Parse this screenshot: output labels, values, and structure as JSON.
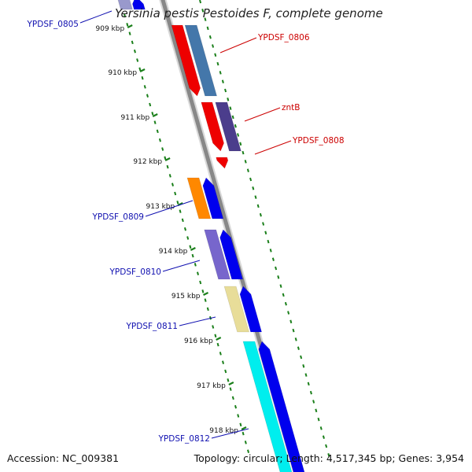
{
  "header": {
    "title": "Yersinia pestis Pestoides F, complete genome"
  },
  "footer": {
    "accession": "Accession: NC_009381",
    "summary": "Topology: circular; Length: 4,517,345 bp; Genes: 3,954"
  },
  "colors": {
    "backbone": "#888888",
    "tick_track": "#1a7f1a",
    "label_red": "#cc0000",
    "label_blue": "#1010b0"
  },
  "ruler": {
    "unit": "kbp",
    "tick_labels": [
      {
        "pos_kbp": 909,
        "text": "909 kbp"
      },
      {
        "pos_kbp": 910,
        "text": "910 kbp"
      },
      {
        "pos_kbp": 911,
        "text": "911 kbp"
      },
      {
        "pos_kbp": 912,
        "text": "912 kbp"
      },
      {
        "pos_kbp": 913,
        "text": "913 kbp"
      },
      {
        "pos_kbp": 914,
        "text": "914 kbp"
      },
      {
        "pos_kbp": 915,
        "text": "915 kbp"
      },
      {
        "pos_kbp": 916,
        "text": "916 kbp"
      },
      {
        "pos_kbp": 917,
        "text": "917 kbp"
      },
      {
        "pos_kbp": 918,
        "text": "918 kbp"
      }
    ]
  },
  "genes": [
    {
      "name": "YPDSF_0805",
      "strand": "reverse",
      "label_color": "#1010b0",
      "cds_color": "#0000ee",
      "feature_color": "#9999cc"
    },
    {
      "name": "YPDSF_0806",
      "strand": "forward",
      "label_color": "#cc0000",
      "cds_color": "#ee0000",
      "feature_color": "#4477aa"
    },
    {
      "name": "zntB",
      "strand": "forward",
      "label_color": "#cc0000",
      "cds_color": "#ee0000",
      "feature_color": "#4b3d8c"
    },
    {
      "name": "YPDSF_0808",
      "strand": "forward",
      "label_color": "#cc0000",
      "cds_color": "#ee0000",
      "feature_color": ""
    },
    {
      "name": "YPDSF_0809",
      "strand": "reverse",
      "label_color": "#1010b0",
      "cds_color": "#0000ee",
      "feature_color": "#ff8800"
    },
    {
      "name": "YPDSF_0810",
      "strand": "reverse",
      "label_color": "#1010b0",
      "cds_color": "#0000ee",
      "feature_color": "#7766cc"
    },
    {
      "name": "YPDSF_0811",
      "strand": "reverse",
      "label_color": "#1010b0",
      "cds_color": "#0000ee",
      "feature_color": "#e8dd99"
    },
    {
      "name": "YPDSF_0812",
      "strand": "reverse",
      "label_color": "#1010b0",
      "cds_color": "#0000ee",
      "feature_color": "#00eeee"
    }
  ]
}
